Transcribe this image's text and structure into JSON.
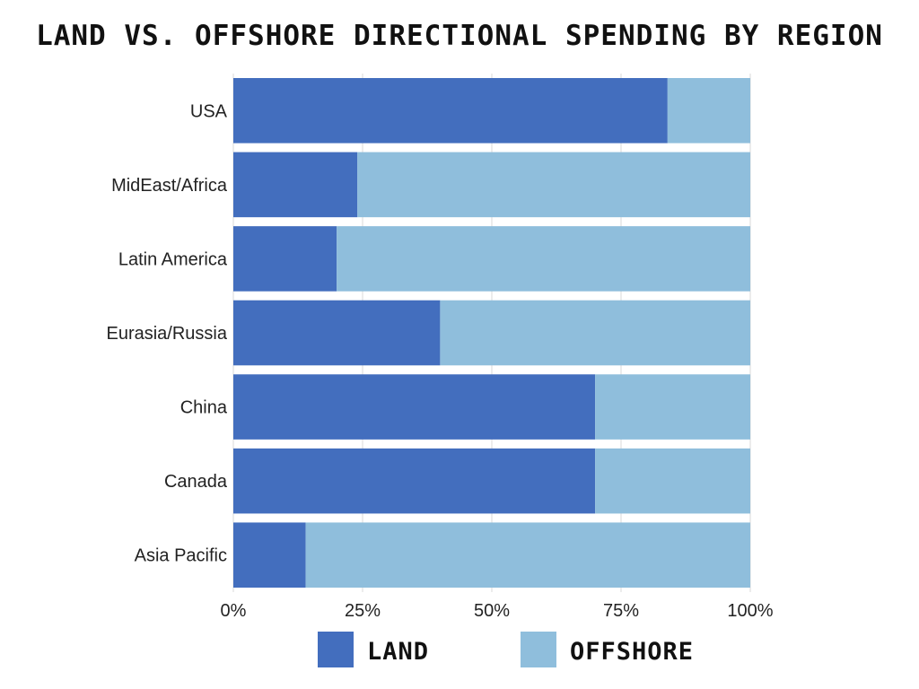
{
  "chart_data": {
    "type": "bar",
    "orientation": "horizontal",
    "stacked": true,
    "percent": true,
    "title": "Land vs. Offshore Directional Spending by Region",
    "categories": [
      "USA",
      "MidEast/Africa",
      "Latin America",
      "Eurasia/Russia",
      "China",
      "Canada",
      "Asia Pacific"
    ],
    "series": [
      {
        "name": "LAND",
        "color": "#436EBE",
        "values": [
          84,
          24,
          20,
          40,
          70,
          70,
          14
        ]
      },
      {
        "name": "OFFSHORE",
        "color": "#8FBEDC",
        "values": [
          16,
          76,
          80,
          60,
          30,
          30,
          86
        ]
      }
    ],
    "x_ticks": [
      "0%",
      "25%",
      "50%",
      "75%",
      "100%"
    ],
    "xlim": [
      0,
      100
    ],
    "grid": "vertical",
    "legend_position": "bottom"
  }
}
